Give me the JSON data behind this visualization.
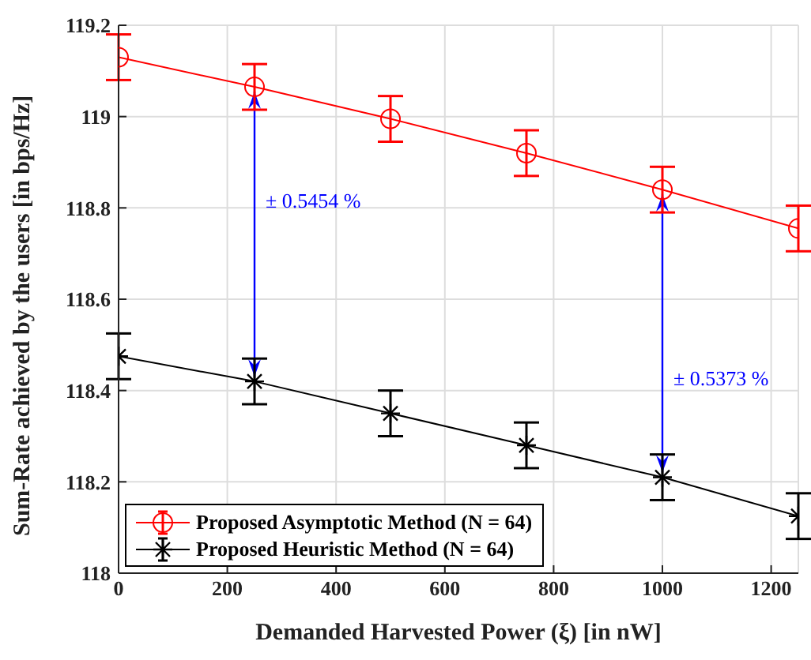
{
  "chart_data": {
    "type": "line",
    "xlabel": "Demanded Harvested Power (ξ) [in nW]",
    "ylabel": "Sum-Rate achieved by the users [in bps/Hz]",
    "x": [
      0,
      250,
      500,
      750,
      1000,
      1250
    ],
    "series": [
      {
        "name": "Proposed Asymptotic Method (N = 64)",
        "color": "#ff0000",
        "marker": "circle",
        "values": [
          119.13,
          119.065,
          118.995,
          118.92,
          118.84,
          118.755
        ],
        "errors": [
          0.05,
          0.05,
          0.05,
          0.05,
          0.05,
          0.05
        ]
      },
      {
        "name": "Proposed Heuristic Method (N = 64)",
        "color": "#000000",
        "marker": "cross",
        "values": [
          118.475,
          118.42,
          118.35,
          118.28,
          118.21,
          118.125
        ],
        "errors": [
          0.05,
          0.05,
          0.05,
          0.05,
          0.05,
          0.05
        ]
      }
    ],
    "xlim": [
      0,
      1250
    ],
    "xticks": [
      0,
      200,
      400,
      600,
      800,
      1000,
      1200
    ],
    "ylim": [
      118,
      119.2
    ],
    "yticks": [
      118,
      118.2,
      118.4,
      118.6,
      118.8,
      119,
      119.2
    ],
    "grid": true,
    "legend": "bottom left",
    "line_style": "solid",
    "annotations": [
      "± 0.5454 %",
      "± 0.5373 %"
    ]
  }
}
